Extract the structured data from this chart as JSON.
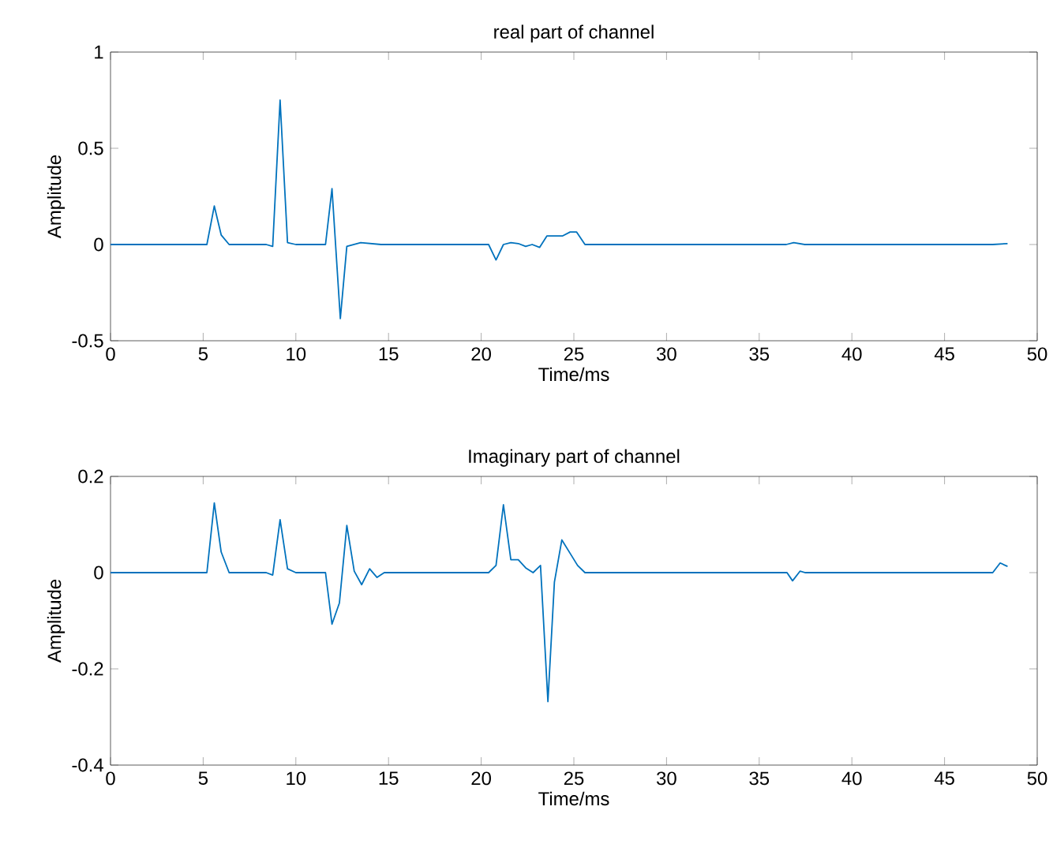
{
  "chart_data": [
    {
      "type": "line",
      "title": "real part of channel",
      "xlabel": "Time/ms",
      "ylabel": "Amplitude",
      "color": "#0072bd",
      "xlim": [
        0,
        50
      ],
      "ylim": [
        -0.5,
        1
      ],
      "xticks": [
        0,
        5,
        10,
        15,
        20,
        25,
        30,
        35,
        40,
        45,
        50
      ],
      "yticks": [
        -0.5,
        0,
        0.5,
        1
      ],
      "x": [
        0,
        5.2,
        5.6,
        5.97,
        6.4,
        8.4,
        8.75,
        9.15,
        9.55,
        10.0,
        11.6,
        11.95,
        12.4,
        12.75,
        13.5,
        14.6,
        20.4,
        20.8,
        21.2,
        21.6,
        22.0,
        22.4,
        22.75,
        23.15,
        23.55,
        24.4,
        24.8,
        25.15,
        25.6,
        36.46,
        36.86,
        37.45,
        47.6,
        48.4
      ],
      "values": [
        0,
        0,
        0.2,
        0.05,
        0,
        0,
        -0.01,
        0.75,
        0.01,
        0,
        0,
        0.29,
        -0.385,
        -0.01,
        0.01,
        0,
        0,
        -0.08,
        0,
        0.01,
        0.005,
        -0.01,
        0,
        -0.015,
        0.045,
        0.045,
        0.065,
        0.065,
        0,
        0,
        0.01,
        0,
        0,
        0.005
      ]
    },
    {
      "type": "line",
      "title": "Imaginary  part of channel",
      "xlabel": "Time/ms",
      "ylabel": "Amplitude",
      "color": "#0072bd",
      "xlim": [
        0,
        50
      ],
      "ylim": [
        -0.4,
        0.2
      ],
      "xticks": [
        0,
        5,
        10,
        15,
        20,
        25,
        30,
        35,
        40,
        45,
        50
      ],
      "yticks": [
        -0.4,
        -0.2,
        0,
        0.2
      ],
      "x": [
        0,
        5.2,
        5.6,
        5.97,
        6.4,
        8.4,
        8.75,
        9.15,
        9.55,
        10.0,
        11.6,
        11.95,
        12.35,
        12.75,
        13.15,
        13.55,
        13.98,
        14.38,
        14.77,
        20.4,
        20.8,
        21.2,
        21.6,
        22.0,
        22.4,
        22.8,
        23.2,
        23.6,
        23.95,
        24.35,
        24.8,
        25.2,
        25.6,
        36.5,
        36.8,
        37.2,
        37.5,
        47.6,
        48.0,
        48.4
      ],
      "values": [
        0,
        0,
        0.145,
        0.043,
        0,
        0,
        -0.005,
        0.11,
        0.008,
        0,
        0,
        -0.107,
        -0.063,
        0.098,
        0.003,
        -0.025,
        0.008,
        -0.01,
        0,
        0,
        0.015,
        0.141,
        0.027,
        0.027,
        0.01,
        0,
        0.015,
        -0.268,
        -0.02,
        0.068,
        0.04,
        0.015,
        0,
        0,
        -0.017,
        0.003,
        0,
        0,
        0.02,
        0.013
      ]
    }
  ]
}
